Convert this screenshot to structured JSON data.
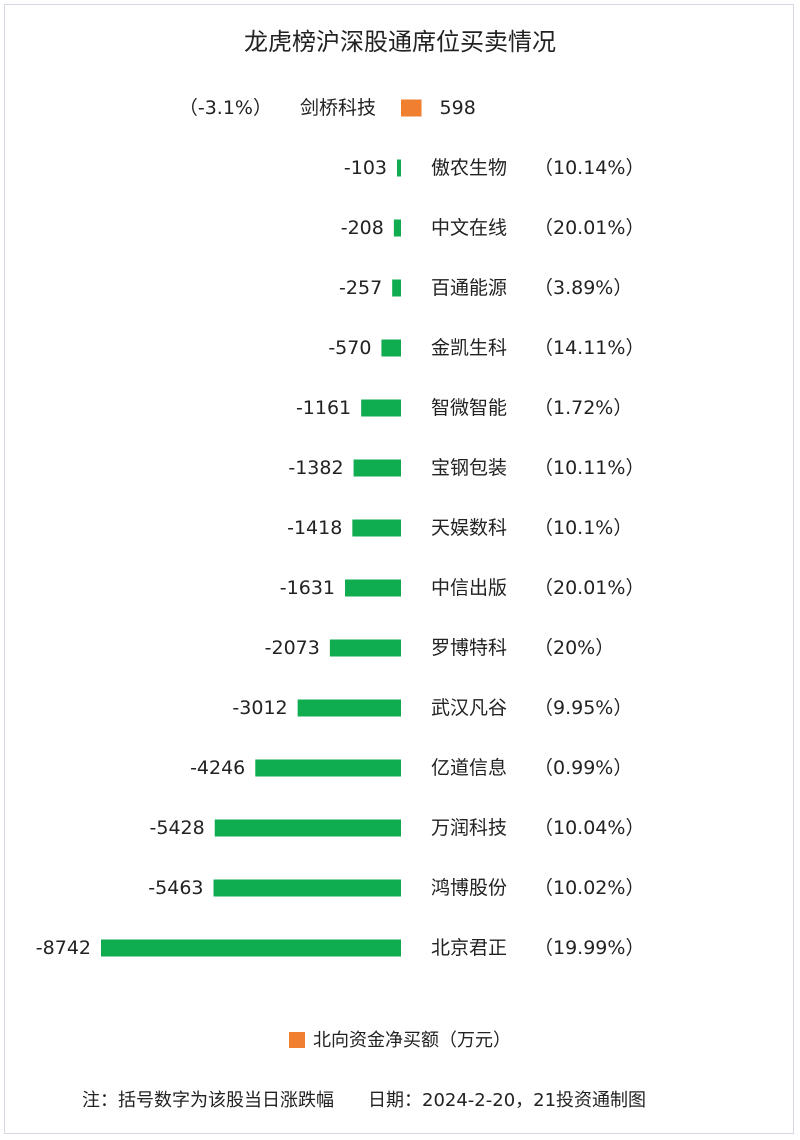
{
  "chart_data": {
    "type": "bar",
    "orientation": "horizontal",
    "title": "龙虎榜沪深股通席位买卖情况",
    "categories": [
      "剑桥科技",
      "傲农生物",
      "中文在线",
      "百通能源",
      "金凯生科",
      "智微智能",
      "宝钢包装",
      "天娱数科",
      "中信出版",
      "罗博特科",
      "武汉凡谷",
      "亿道信息",
      "万润科技",
      "鸿博股份",
      "北京君正"
    ],
    "values": [
      598,
      -103,
      -208,
      -257,
      -570,
      -1161,
      -1382,
      -1418,
      -1631,
      -2073,
      -3012,
      -4246,
      -5428,
      -5463,
      -8742
    ],
    "pct_labels": [
      "（-3.1%）",
      "（10.14%）",
      "（20.01%）",
      "（3.89%）",
      "（14.11%）",
      "（1.72%）",
      "（10.11%）",
      "（10.1%）",
      "（20.01%）",
      "（20%）",
      "（9.95%）",
      "（0.99%）",
      "（10.04%）",
      "（10.02%）",
      "（19.99%）"
    ],
    "series": [
      {
        "name": "北向资金净买额（万元）"
      }
    ],
    "legend_position": "bottom",
    "colors": {
      "positive": "#f08030",
      "negative": "#10ac50"
    }
  },
  "footer": {
    "note": "注：括号数字为该股当日涨跌幅",
    "date": "日期：2024-2-20，21投资通制图"
  }
}
